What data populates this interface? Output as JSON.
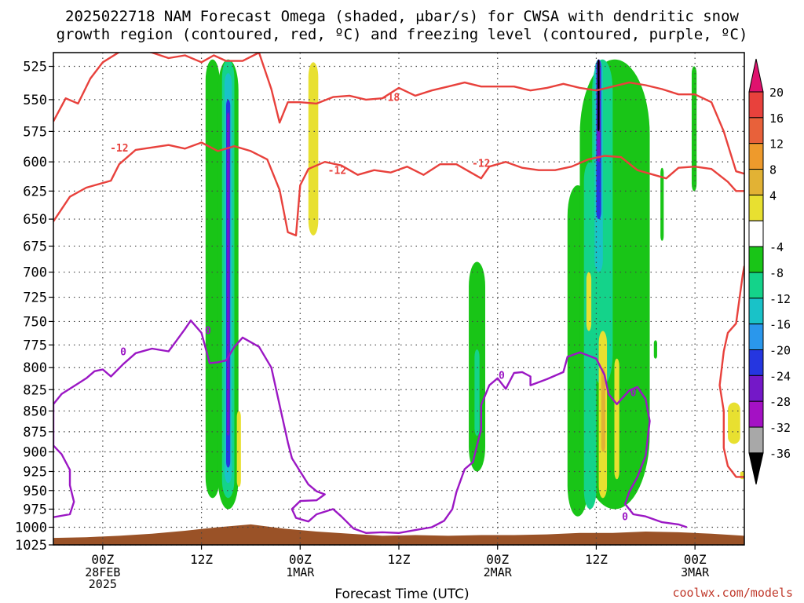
{
  "title_line1": "2025022718 NAM Forecast Omega (shaded, μbar/s) for CWSA with dendritic snow",
  "title_line2": "growth region (contoured, red, ºC) and freezing level (contoured, purple, ºC)",
  "credit": "coolwx.com/models",
  "colors": {
    "temp_contour": "#e8413c",
    "freezing_contour": "#9b17c4",
    "terrain": "#9a5227"
  },
  "chart_data": {
    "type": "heatmap",
    "xlabel": "Forecast Time (UTC)",
    "ylabel": "",
    "x_ticks": [
      {
        "t": 6,
        "label": "00Z",
        "sub": [
          "28FEB",
          "2025"
        ]
      },
      {
        "t": 18,
        "label": "12Z",
        "sub": []
      },
      {
        "t": 30,
        "label": "00Z",
        "sub": [
          "1MAR"
        ]
      },
      {
        "t": 42,
        "label": "12Z",
        "sub": []
      },
      {
        "t": 54,
        "label": "00Z",
        "sub": [
          "2MAR"
        ]
      },
      {
        "t": 66,
        "label": "12Z",
        "sub": []
      },
      {
        "t": 78,
        "label": "00Z",
        "sub": [
          "3MAR"
        ]
      }
    ],
    "xlim": [
      0,
      84
    ],
    "y_ticks": [
      525,
      550,
      575,
      600,
      625,
      650,
      675,
      700,
      725,
      750,
      775,
      800,
      825,
      850,
      875,
      900,
      925,
      950,
      975,
      1000,
      1025
    ],
    "ylim": [
      1025,
      515
    ],
    "y_scale": "log-pressure",
    "grid": true,
    "colorbar": {
      "labels": [
        "20",
        "16",
        "12",
        "8",
        "4",
        "-4",
        "-8",
        "-12",
        "-16",
        "-20",
        "-24",
        "-28",
        "-32",
        "-36"
      ],
      "colors": [
        "#e8413c",
        "#e8613a",
        "#ee9a2c",
        "#e2b234",
        "#e8e030",
        "#ffffff",
        "#19c517",
        "#14d38a",
        "#19c2c8",
        "#2a97ec",
        "#2536e0",
        "#7418c8",
        "#a411c4",
        "#a8a8a8"
      ],
      "top_arrow": "#e0126e",
      "bottom_arrow": "#000000"
    },
    "series": [
      {
        "name": "-18",
        "kind": "temperature",
        "points": [
          [
            0,
            567
          ],
          [
            1.5,
            549
          ],
          [
            3,
            553
          ],
          [
            4.5,
            534
          ],
          [
            6,
            522
          ],
          [
            9,
            511
          ],
          [
            12,
            515
          ],
          [
            14,
            519
          ],
          [
            16,
            517
          ],
          [
            18,
            522
          ],
          [
            19.5,
            517
          ],
          [
            21,
            521
          ],
          [
            23,
            521
          ],
          [
            25,
            515
          ],
          [
            26.5,
            542
          ],
          [
            27.5,
            568
          ],
          [
            28.5,
            552
          ],
          [
            30,
            552
          ],
          [
            32,
            553
          ],
          [
            34,
            548
          ],
          [
            36,
            547
          ],
          [
            38,
            550
          ],
          [
            40,
            549
          ],
          [
            42,
            541
          ],
          [
            44,
            547
          ],
          [
            46,
            543
          ],
          [
            48,
            540
          ],
          [
            50,
            537
          ],
          [
            52,
            540
          ],
          [
            54,
            540
          ],
          [
            56,
            540
          ],
          [
            58,
            543
          ],
          [
            60,
            541
          ],
          [
            62,
            538
          ],
          [
            64,
            541
          ],
          [
            66,
            543
          ],
          [
            68,
            540
          ],
          [
            70,
            537
          ],
          [
            72,
            539
          ],
          [
            74,
            542
          ],
          [
            76,
            546
          ],
          [
            78,
            546
          ],
          [
            80,
            552
          ],
          [
            81.5,
            575
          ],
          [
            83,
            608
          ],
          [
            84,
            610
          ]
        ],
        "labels": [
          {
            "t": 41,
            "p": 548,
            "text": "-18"
          }
        ]
      },
      {
        "name": "-12",
        "kind": "temperature",
        "points": [
          [
            0,
            652
          ],
          [
            2,
            630
          ],
          [
            4,
            622
          ],
          [
            5,
            620
          ],
          [
            7,
            616
          ],
          [
            8,
            602
          ],
          [
            10,
            590
          ],
          [
            12,
            588
          ],
          [
            14,
            586
          ],
          [
            16,
            589
          ],
          [
            18,
            584
          ],
          [
            20,
            591
          ],
          [
            22,
            587
          ],
          [
            24,
            591
          ],
          [
            26,
            598
          ],
          [
            27.5,
            624
          ],
          [
            28.5,
            662
          ],
          [
            29.5,
            665
          ],
          [
            30,
            620
          ],
          [
            31,
            606
          ],
          [
            33,
            600
          ],
          [
            35,
            603
          ],
          [
            37,
            611
          ],
          [
            39,
            607
          ],
          [
            41,
            609
          ],
          [
            43,
            604
          ],
          [
            45,
            611
          ],
          [
            47,
            602
          ],
          [
            49,
            602
          ],
          [
            51,
            610
          ],
          [
            52,
            614
          ],
          [
            53,
            604
          ],
          [
            55,
            600
          ],
          [
            57,
            605
          ],
          [
            59,
            607
          ],
          [
            61,
            607
          ],
          [
            63,
            604
          ],
          [
            65,
            598
          ],
          [
            67,
            595
          ],
          [
            69,
            596
          ],
          [
            71,
            607
          ],
          [
            73,
            611
          ],
          [
            74.5,
            614
          ],
          [
            76,
            605
          ],
          [
            78,
            604
          ],
          [
            80,
            606
          ],
          [
            82,
            617
          ],
          [
            83,
            625
          ],
          [
            84,
            625
          ]
        ],
        "labels": [
          {
            "t": 8,
            "p": 588,
            "text": "-12"
          },
          {
            "t": 34.5,
            "p": 607,
            "text": "-12"
          },
          {
            "t": 52,
            "p": 601,
            "text": "-12"
          }
        ]
      },
      {
        "name": "-12",
        "kind": "temperature",
        "points": [
          [
            84,
            694
          ],
          [
            83.8,
            703
          ],
          [
            83,
            752
          ],
          [
            82,
            762
          ],
          [
            81.5,
            782
          ],
          [
            81,
            820
          ],
          [
            81.5,
            850
          ],
          [
            81.5,
            895
          ],
          [
            82,
            918
          ],
          [
            83,
            932
          ],
          [
            84,
            932
          ]
        ],
        "labels": []
      },
      {
        "name": "0",
        "kind": "freezing",
        "points": [
          [
            0,
            986
          ],
          [
            2,
            982
          ],
          [
            2.5,
            965
          ],
          [
            2,
            943
          ],
          [
            2,
            923
          ],
          [
            1,
            903
          ],
          [
            0,
            892
          ],
          [
            0,
            842
          ],
          [
            1,
            830
          ],
          [
            3,
            818
          ],
          [
            4,
            812
          ],
          [
            5,
            804
          ],
          [
            6,
            802
          ],
          [
            7,
            810
          ],
          [
            8.5,
            796
          ],
          [
            10,
            784
          ],
          [
            12,
            779
          ],
          [
            14,
            782
          ],
          [
            15,
            770
          ],
          [
            16,
            758
          ],
          [
            16.7,
            749
          ],
          [
            18,
            762
          ],
          [
            19,
            795
          ],
          [
            20,
            794
          ],
          [
            21,
            792
          ],
          [
            22,
            777
          ],
          [
            23,
            767
          ],
          [
            25,
            777
          ],
          [
            26.5,
            800
          ],
          [
            27.5,
            843
          ],
          [
            28.5,
            888
          ],
          [
            29,
            908
          ],
          [
            30,
            925
          ],
          [
            31,
            942
          ],
          [
            32,
            951
          ],
          [
            33,
            955
          ],
          [
            32,
            963
          ],
          [
            30,
            964
          ],
          [
            29,
            975
          ],
          [
            29.5,
            987
          ],
          [
            31,
            992
          ],
          [
            32,
            982
          ],
          [
            34,
            975
          ],
          [
            35,
            985
          ],
          [
            36.5,
            1002
          ],
          [
            38,
            1008
          ],
          [
            40,
            1007
          ],
          [
            42,
            1008
          ],
          [
            44,
            1004
          ],
          [
            46,
            1000
          ],
          [
            47.5,
            991
          ],
          [
            48.5,
            975
          ],
          [
            49,
            952
          ],
          [
            50,
            922
          ],
          [
            51,
            913
          ],
          [
            51.5,
            892
          ],
          [
            52,
            872
          ],
          [
            52,
            843
          ],
          [
            53,
            820
          ],
          [
            54,
            812
          ],
          [
            55,
            824
          ],
          [
            56,
            806
          ],
          [
            57,
            805
          ],
          [
            58,
            810
          ],
          [
            58,
            820
          ],
          [
            60,
            813
          ],
          [
            62,
            805
          ],
          [
            62.5,
            788
          ],
          [
            64,
            783
          ],
          [
            66,
            790
          ],
          [
            67,
            808
          ],
          [
            67.5,
            830
          ],
          [
            68.5,
            842
          ],
          [
            70,
            826
          ],
          [
            71,
            822
          ],
          [
            72,
            836
          ],
          [
            72.5,
            862
          ],
          [
            72,
            905
          ],
          [
            71,
            932
          ],
          [
            70,
            952
          ],
          [
            69.5,
            968
          ],
          [
            70.5,
            982
          ],
          [
            72,
            985
          ],
          [
            74,
            993
          ],
          [
            76,
            996
          ],
          [
            77,
            1000
          ]
        ],
        "labels": [
          {
            "t": 8.5,
            "p": 782,
            "text": "0"
          },
          {
            "t": 18.8,
            "p": 759,
            "text": "0"
          },
          {
            "t": 54.5,
            "p": 808,
            "text": "0"
          },
          {
            "t": 70.5,
            "p": 828,
            "text": "0"
          },
          {
            "t": 69.5,
            "p": 985,
            "text": "0"
          }
        ]
      }
    ],
    "omega_regions": [
      {
        "level": "-8",
        "color": "#19c517",
        "t0": 18.5,
        "t1": 20.2,
        "p_top": 520,
        "p_bot": 960
      },
      {
        "level": "-8",
        "color": "#19c517",
        "t0": 20,
        "t1": 22.5,
        "p_top": 520,
        "p_bot": 975
      },
      {
        "level": "-12",
        "color": "#14d38a",
        "t0": 20.5,
        "t1": 22,
        "p_top": 520,
        "p_bot": 960
      },
      {
        "level": "-16",
        "color": "#19c2c8",
        "t0": 20.8,
        "t1": 21.7,
        "p_top": 530,
        "p_bot": 940
      },
      {
        "level": "-24",
        "color": "#2536e0",
        "t0": 21,
        "t1": 21.5,
        "p_top": 550,
        "p_bot": 920
      },
      {
        "level": "-28",
        "color": "#7418c8",
        "t0": 21.1,
        "t1": 21.4,
        "p_top": 560,
        "p_bot": 880
      },
      {
        "level": "4",
        "color": "#e8e030",
        "t0": 22.3,
        "t1": 22.8,
        "p_top": 850,
        "p_bot": 945
      },
      {
        "level": "4",
        "color": "#e8e030",
        "t0": 31,
        "t1": 32.2,
        "p_top": 522,
        "p_bot": 665
      },
      {
        "level": "-8",
        "color": "#19c517",
        "t0": 50.5,
        "t1": 52.5,
        "p_top": 690,
        "p_bot": 925
      },
      {
        "level": "-12",
        "color": "#14d38a",
        "t0": 51.2,
        "t1": 51.8,
        "p_top": 780,
        "p_bot": 880
      },
      {
        "level": "-8",
        "color": "#19c517",
        "t0": 62.5,
        "t1": 65,
        "p_top": 620,
        "p_bot": 985
      },
      {
        "level": "-8",
        "color": "#19c517",
        "t0": 64,
        "t1": 72.5,
        "p_top": 520,
        "p_bot": 975
      },
      {
        "level": "-12",
        "color": "#14d38a",
        "t0": 64.5,
        "t1": 66,
        "p_top": 600,
        "p_bot": 975
      },
      {
        "level": "-12",
        "color": "#14d38a",
        "t0": 65.5,
        "t1": 68,
        "p_top": 520,
        "p_bot": 820
      },
      {
        "level": "-16",
        "color": "#19c2c8",
        "t0": 65.8,
        "t1": 66.8,
        "p_top": 520,
        "p_bot": 700
      },
      {
        "level": "-24",
        "color": "#2536e0",
        "t0": 66,
        "t1": 66.6,
        "p_top": 520,
        "p_bot": 650
      },
      {
        "level": "-28",
        "color": "#7418c8",
        "t0": 66.1,
        "t1": 66.5,
        "p_top": 520,
        "p_bot": 600
      },
      {
        "level": "-36",
        "color": "#000000",
        "t0": 66.15,
        "t1": 66.4,
        "p_top": 520,
        "p_bot": 575
      },
      {
        "level": "4",
        "color": "#e8e030",
        "t0": 64.8,
        "t1": 65.4,
        "p_top": 700,
        "p_bot": 760
      },
      {
        "level": "4",
        "color": "#e8e030",
        "t0": 66.3,
        "t1": 67.3,
        "p_top": 760,
        "p_bot": 960
      },
      {
        "level": "8",
        "color": "#e2b234",
        "t0": 66.6,
        "t1": 67.1,
        "p_top": 800,
        "p_bot": 900
      },
      {
        "level": "4",
        "color": "#e8e030",
        "t0": 68.2,
        "t1": 68.8,
        "p_top": 790,
        "p_bot": 935
      },
      {
        "level": "-8",
        "color": "#19c517",
        "t0": 73.8,
        "t1": 74.2,
        "p_top": 605,
        "p_bot": 670
      },
      {
        "level": "-8",
        "color": "#19c517",
        "t0": 73,
        "t1": 73.4,
        "p_top": 770,
        "p_bot": 790
      },
      {
        "level": "-8",
        "color": "#19c517",
        "t0": 77.6,
        "t1": 78.2,
        "p_top": 525,
        "p_bot": 625
      },
      {
        "level": "4",
        "color": "#e8e030",
        "t0": 82,
        "t1": 83.5,
        "p_top": 840,
        "p_bot": 890
      },
      {
        "level": "4",
        "color": "#e8e030",
        "t0": 83.5,
        "t1": 84,
        "p_top": 925,
        "p_bot": 935
      }
    ],
    "terrain": [
      [
        0,
        1015
      ],
      [
        4,
        1014
      ],
      [
        8,
        1012
      ],
      [
        12,
        1009
      ],
      [
        16,
        1005
      ],
      [
        20,
        1000
      ],
      [
        24,
        996
      ],
      [
        28,
        1002
      ],
      [
        32,
        1006
      ],
      [
        36,
        1009
      ],
      [
        40,
        1012
      ],
      [
        44,
        1011
      ],
      [
        48,
        1012
      ],
      [
        52,
        1011
      ],
      [
        56,
        1011
      ],
      [
        60,
        1010
      ],
      [
        64,
        1008
      ],
      [
        68,
        1008
      ],
      [
        72,
        1006
      ],
      [
        76,
        1007
      ],
      [
        80,
        1009
      ],
      [
        84,
        1012
      ]
    ]
  }
}
